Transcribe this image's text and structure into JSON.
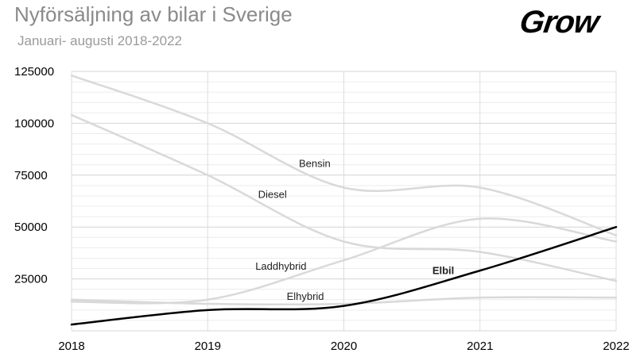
{
  "header": {
    "title": "Nyförsäljning av bilar i Sverige",
    "subtitle": "Januari- augusti 2018-2022",
    "logo_text": "Grow"
  },
  "chart_data": {
    "type": "line",
    "title": "Nyförsäljning av bilar i Sverige",
    "subtitle": "Januari- augusti 2018-2022",
    "xlabel": "",
    "ylabel": "",
    "x": [
      2018,
      2019,
      2020,
      2021,
      2022
    ],
    "x_tick_labels": [
      "2018",
      "2019",
      "2020",
      "2021",
      "2022"
    ],
    "ylim": [
      0,
      125000
    ],
    "y_ticks": [
      25000,
      50000,
      75000,
      100000,
      125000
    ],
    "y_tick_labels": [
      "25000",
      "50000",
      "75000",
      "100000",
      "125000"
    ],
    "grid": true,
    "legend": "none",
    "series": [
      {
        "name": "Bensin",
        "values": [
          123000,
          100000,
          69000,
          69000,
          46000
        ],
        "color": "#d9d9d9",
        "bold": false
      },
      {
        "name": "Diesel",
        "values": [
          104000,
          75000,
          43000,
          38000,
          24000
        ],
        "color": "#d9d9d9",
        "bold": false
      },
      {
        "name": "Laddhybrid",
        "values": [
          14000,
          15000,
          34000,
          54000,
          43000
        ],
        "color": "#d9d9d9",
        "bold": false
      },
      {
        "name": "Elhybrid",
        "values": [
          15000,
          13000,
          13000,
          16000,
          16000
        ],
        "color": "#d9d9d9",
        "bold": false
      },
      {
        "name": "Elbil",
        "values": [
          3000,
          10000,
          12000,
          29000,
          50000
        ],
        "color": "#000000",
        "bold": true
      }
    ],
    "series_labels": [
      {
        "text": "Bensin",
        "x": 2019.67,
        "y": 79000
      },
      {
        "text": "Diesel",
        "x": 2019.37,
        "y": 64000
      },
      {
        "text": "Laddhybrid",
        "x": 2019.35,
        "y": 29500
      },
      {
        "text": "Elhybrid",
        "x": 2019.58,
        "y": 15000
      },
      {
        "text": "Elbil",
        "x": 2020.65,
        "y": 27300
      }
    ]
  }
}
